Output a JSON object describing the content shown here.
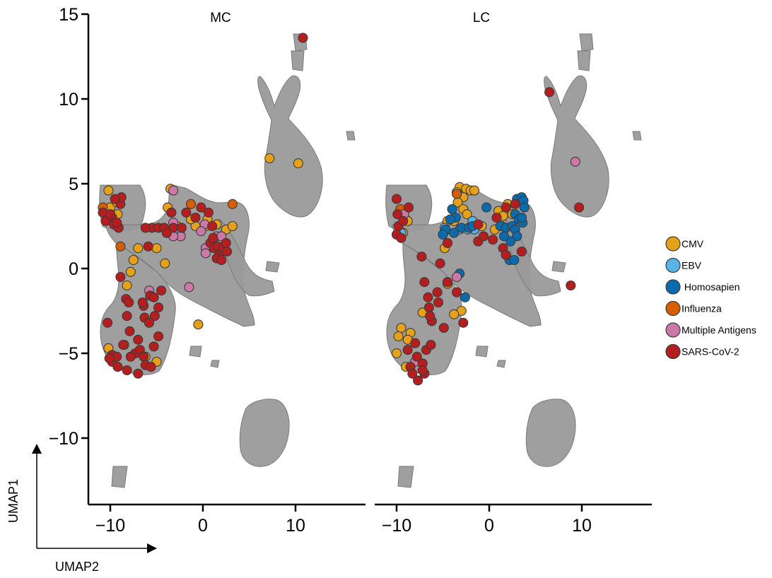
{
  "chart_data": [
    {
      "type": "scatter",
      "panel_title": "MC",
      "xlim": [
        -12.5,
        17.5
      ],
      "ylim": [
        -13.5,
        15.2
      ],
      "x_ticks": [
        -10,
        0,
        10
      ],
      "x_tick_labels": [
        "−10",
        "0",
        "10"
      ],
      "y_ticks": [
        15,
        10,
        5,
        0,
        -5,
        -10
      ],
      "y_tick_labels": [
        "15",
        "10",
        "5",
        "0",
        "−5",
        "−10"
      ],
      "grid": false,
      "background_cells": "grey",
      "series": [
        {
          "name": "CMV",
          "points": [
            [
              -10.2,
              4.6
            ],
            [
              -10,
              3.6
            ],
            [
              -9.2,
              3.2
            ],
            [
              -9.3,
              3.9
            ],
            [
              -7,
              1.2
            ],
            [
              -5,
              1.2
            ],
            [
              -7.5,
              0.5
            ],
            [
              -7.8,
              -0.2
            ],
            [
              -8.2,
              -1
            ],
            [
              -3.5,
              4.7
            ],
            [
              -3.8,
              3.6
            ],
            [
              -1.2,
              2.9
            ],
            [
              -0.8,
              2.5
            ],
            [
              0.3,
              2.5
            ],
            [
              1.5,
              2.6
            ],
            [
              2.5,
              2.3
            ],
            [
              3.2,
              2.5
            ],
            [
              -2.8,
              2.5
            ],
            [
              -4.1,
              0.3
            ],
            [
              -10.2,
              -4.7
            ],
            [
              -8.5,
              -4.5
            ],
            [
              -6.2,
              -5.2
            ],
            [
              -5,
              -5.5
            ],
            [
              -0.5,
              -3.3
            ],
            [
              7.2,
              6.5
            ],
            [
              10.3,
              6.2
            ],
            [
              -1.3,
              2.9
            ],
            [
              0.5,
              2.9
            ]
          ]
        },
        {
          "name": "EBV",
          "points": [
            [
              -2.5,
              2.2
            ]
          ]
        },
        {
          "name": "Homosapien",
          "points": []
        },
        {
          "name": "Influenza",
          "points": [
            [
              -10.8,
              3.6
            ],
            [
              -8.9,
              1.3
            ],
            [
              3.2,
              3.8
            ],
            [
              -1.3,
              3.8
            ]
          ]
        },
        {
          "name": "Multiple Antigens",
          "points": [
            [
              -3.2,
              4.6
            ],
            [
              -3.2,
              2.7
            ],
            [
              -2.4,
              1.9
            ],
            [
              -3.2,
              1.9
            ],
            [
              0.2,
              2.6
            ],
            [
              1.5,
              1.9
            ],
            [
              0.3,
              1.2
            ],
            [
              0.3,
              0.9
            ],
            [
              -1.5,
              -1.1
            ],
            [
              -5.8,
              -1.3
            ],
            [
              -0.2,
              2.2
            ],
            [
              2,
              1.9
            ]
          ]
        },
        {
          "name": "SARS-CoV-2",
          "points": [
            [
              -10.8,
              3.3
            ],
            [
              -9.8,
              3
            ],
            [
              -9.6,
              2.6
            ],
            [
              -10.5,
              2.8
            ],
            [
              -8.9,
              3.8
            ],
            [
              -8.8,
              4.2
            ],
            [
              -9.5,
              4.1
            ],
            [
              -10,
              3.2
            ],
            [
              -9.1,
              2.4
            ],
            [
              -9.3,
              2.7
            ],
            [
              -5.5,
              2.4
            ],
            [
              -4.8,
              2.4
            ],
            [
              -4.2,
              2.4
            ],
            [
              -3.2,
              2.4
            ],
            [
              -2.3,
              2.4
            ],
            [
              -6.2,
              2.4
            ],
            [
              -5.9,
              1.3
            ],
            [
              -3.4,
              3.3
            ],
            [
              -3.9,
              2.1
            ],
            [
              -1.8,
              3.3
            ],
            [
              -0.8,
              3
            ],
            [
              -0.2,
              3.6
            ],
            [
              0.6,
              3.3
            ],
            [
              1,
              2.5
            ],
            [
              0.8,
              1.5
            ],
            [
              1.2,
              1.2
            ],
            [
              1.6,
              1.3
            ],
            [
              1.8,
              0.8
            ],
            [
              2.2,
              1.2
            ],
            [
              2.6,
              1
            ],
            [
              1.5,
              0.6
            ],
            [
              2,
              0.5
            ],
            [
              1.1,
              1.8
            ],
            [
              2.5,
              1.5
            ],
            [
              -8.9,
              -0.5
            ],
            [
              -8.3,
              -1.8
            ],
            [
              -8,
              -2
            ],
            [
              -8.2,
              -2.8
            ],
            [
              -7.9,
              -3.7
            ],
            [
              -6.4,
              -2.2
            ],
            [
              -6.3,
              -2.9
            ],
            [
              -5.7,
              -1.6
            ],
            [
              -5.3,
              -1.7
            ],
            [
              -5.2,
              -2.8
            ],
            [
              -4.8,
              -2.3
            ],
            [
              -4.5,
              -1.3
            ],
            [
              -5.8,
              -3.2
            ],
            [
              -10.3,
              -3.2
            ],
            [
              -9.8,
              -5.1
            ],
            [
              -9.8,
              -5.5
            ],
            [
              -9.2,
              -5.8
            ],
            [
              -9.3,
              -5.2
            ],
            [
              -8.2,
              -6
            ],
            [
              -7.3,
              -5
            ],
            [
              -7,
              -4.2
            ],
            [
              -6.8,
              -4.8
            ],
            [
              -6.4,
              -5.2
            ],
            [
              -6.2,
              -5.7
            ],
            [
              -7,
              -6.2
            ],
            [
              -5.6,
              -5.8
            ],
            [
              -10.1,
              -5.3
            ],
            [
              -5.3,
              -4.6
            ],
            [
              -4.8,
              -4
            ],
            [
              10.8,
              13.6
            ],
            [
              -8.6,
              -4.5
            ],
            [
              -6.5,
              -2
            ],
            [
              -7.8,
              -5.2
            ]
          ]
        }
      ]
    },
    {
      "type": "scatter",
      "panel_title": "LC",
      "xlim": [
        -12.5,
        17.5
      ],
      "ylim": [
        -13.5,
        15.2
      ],
      "x_ticks": [
        -10,
        0,
        10
      ],
      "x_tick_labels": [
        "−10",
        "0",
        "10"
      ],
      "grid": false,
      "background_cells": "grey",
      "series": [
        {
          "name": "CMV",
          "points": [
            [
              -3.2,
              4.8
            ],
            [
              -2.5,
              4.7
            ],
            [
              -2,
              4.6
            ],
            [
              -1.6,
              4.6
            ],
            [
              -2.8,
              4.2
            ],
            [
              -3.5,
              4.5
            ],
            [
              -3.4,
              3.9
            ],
            [
              -2.8,
              3.5
            ],
            [
              -4.5,
              2.8
            ],
            [
              -3.8,
              2.8
            ],
            [
              -4.8,
              2.2
            ],
            [
              -4.8,
              1.2
            ],
            [
              -9.2,
              3.1
            ],
            [
              -8.8,
              2.8
            ],
            [
              -9.3,
              2.1
            ],
            [
              -0.8,
              2.5
            ],
            [
              1,
              3.4
            ],
            [
              1.5,
              3.1
            ],
            [
              2,
              3.8
            ],
            [
              2.5,
              3.2
            ],
            [
              0.6,
              2.3
            ],
            [
              -4.5,
              -0.9
            ],
            [
              -3,
              -2.5
            ],
            [
              -3.8,
              -2.7
            ],
            [
              -7.2,
              -2.6
            ],
            [
              -8.5,
              -3.8
            ],
            [
              -9.5,
              -3.5
            ],
            [
              -9.8,
              -4
            ],
            [
              -8.8,
              -4.2
            ],
            [
              -9,
              -5.8
            ],
            [
              -10,
              -5
            ],
            [
              -2.4,
              3.2
            ],
            [
              1.3,
              2.5
            ]
          ]
        },
        {
          "name": "EBV",
          "points": [
            [
              -4.8,
              2.4
            ],
            [
              -3.2,
              2.3
            ],
            [
              -2.3,
              2.3
            ],
            [
              -1.6,
              2.3
            ],
            [
              -9.5,
              2.1
            ],
            [
              -1.8,
              2.8
            ]
          ]
        },
        {
          "name": "Homosapien",
          "points": [
            [
              -4,
              3.5
            ],
            [
              -3.6,
              3
            ],
            [
              -4.2,
              2.9
            ],
            [
              -4.7,
              2.3
            ],
            [
              -3.8,
              2.1
            ],
            [
              -3,
              2.4
            ],
            [
              -2.2,
              2.4
            ],
            [
              -1.8,
              2.5
            ],
            [
              -0.3,
              3.6
            ],
            [
              -5,
              2
            ],
            [
              3,
              4.1
            ],
            [
              3.5,
              4.2
            ],
            [
              3.7,
              4
            ],
            [
              3.8,
              3.6
            ],
            [
              2.8,
              3.2
            ],
            [
              3.2,
              2.9
            ],
            [
              3.6,
              2.7
            ],
            [
              1.2,
              2.5
            ],
            [
              1.8,
              2.4
            ],
            [
              2.5,
              2.5
            ],
            [
              2.8,
              2.3
            ],
            [
              3,
              1.9
            ],
            [
              2.3,
              1.6
            ],
            [
              1.6,
              1.9
            ],
            [
              3.5,
              3
            ],
            [
              2.2,
              0.5
            ],
            [
              2.7,
              0.5
            ],
            [
              -3.2,
              -0.3
            ],
            [
              -2.6,
              -1.7
            ]
          ]
        },
        {
          "name": "Influenza",
          "points": [
            [
              -9.6,
              3.5
            ],
            [
              -3.5,
              4.4
            ]
          ]
        },
        {
          "name": "Multiple Antigens",
          "points": [
            [
              -9.2,
              3.2
            ],
            [
              -3.5,
              -0.5
            ],
            [
              -8,
              -5.5
            ],
            [
              9.3,
              6.3
            ]
          ]
        },
        {
          "name": "SARS-CoV-2",
          "points": [
            [
              -10,
              4.1
            ],
            [
              -9.9,
              3.2
            ],
            [
              -9.8,
              2.5
            ],
            [
              -10,
              2
            ],
            [
              -9.3,
              2.8
            ],
            [
              -9.5,
              1.8
            ],
            [
              -8.7,
              3.6
            ],
            [
              -4.5,
              1.5
            ],
            [
              -1.2,
              2.6
            ],
            [
              -1.2,
              1.6
            ],
            [
              -0.6,
              1.9
            ],
            [
              0.4,
              1.7
            ],
            [
              0.8,
              3
            ],
            [
              1.8,
              3.6
            ],
            [
              2.8,
              3.8
            ],
            [
              1.5,
              1.2
            ],
            [
              1.8,
              0.8
            ],
            [
              3.5,
              1
            ],
            [
              6.5,
              10.4
            ],
            [
              9.7,
              3.6
            ],
            [
              8.8,
              -1
            ],
            [
              -7.3,
              0.7
            ],
            [
              -7,
              -0.8
            ],
            [
              -6.6,
              -1.7
            ],
            [
              -6.5,
              -2.3
            ],
            [
              -5.6,
              -1.4
            ],
            [
              -5.5,
              -2
            ],
            [
              -4.5,
              -0.8
            ],
            [
              -3.5,
              -1.4
            ],
            [
              -5.3,
              0.3
            ],
            [
              -2.8,
              -3.2
            ],
            [
              -4.9,
              -3.5
            ],
            [
              -6.2,
              -3.1
            ],
            [
              -6.4,
              -2.8
            ],
            [
              -8.8,
              -4.8
            ],
            [
              -8.5,
              -5.8
            ],
            [
              -7.8,
              -5.2
            ],
            [
              -7.2,
              -5.6
            ],
            [
              -7,
              -6.2
            ],
            [
              -7.2,
              -6
            ],
            [
              -6.8,
              -4.8
            ],
            [
              -6.3,
              -4.5
            ],
            [
              -8,
              -4.4
            ],
            [
              -7.7,
              -6.6
            ],
            [
              -8.3,
              -6.2
            ]
          ]
        }
      ]
    }
  ],
  "legend": [
    {
      "label": "CMV",
      "color": "#E5A11A"
    },
    {
      "label": "EBV",
      "color": "#56B4E9"
    },
    {
      "label": " Homosapien",
      "color": "#0A6BAA"
    },
    {
      "label": "Influenza",
      "color": "#D55E00"
    },
    {
      "label": "Multiple Antigens",
      "color": "#CC79A7"
    },
    {
      "label": "SARS-CoV-2",
      "color": "#B41E1E"
    }
  ],
  "series_colors": {
    "CMV": "#E5A11A",
    "EBV": "#56B4E9",
    "Homosapien": "#0A6BAA",
    "Influenza": "#D55E00",
    "Multiple Antigens": "#CC79A7",
    "SARS-CoV-2": "#B41E1E"
  },
  "background_cell_color": "#9a9a9a",
  "umap_axes": {
    "vertical_label": "UMAP1",
    "horizontal_label": "UMAP2"
  }
}
